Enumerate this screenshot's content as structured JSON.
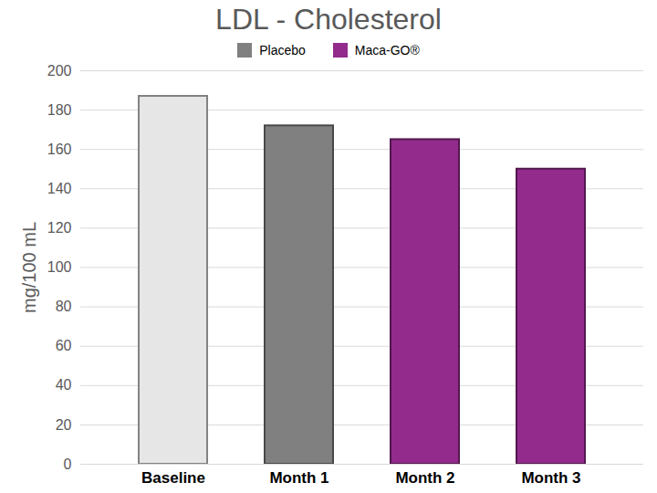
{
  "chart_data": {
    "type": "bar",
    "title": "LDL - Cholesterol",
    "categories": [
      "Baseline",
      "Month 1",
      "Month 2",
      "Month 3"
    ],
    "series": [
      {
        "color": "#e6e6e6",
        "values": [
          187,
          null,
          null,
          null
        ]
      },
      {
        "name": "Placebo",
        "color": "#808080",
        "values": [
          null,
          172,
          null,
          null
        ]
      },
      {
        "name": "Maca-GO®",
        "color": "#922b8c",
        "values": [
          null,
          null,
          165,
          150
        ]
      }
    ],
    "y_label": "mg/100 mL",
    "ylim": [
      0,
      200
    ],
    "yticks": [
      0,
      20,
      40,
      60,
      80,
      100,
      120,
      140,
      160,
      180,
      200
    ],
    "grid": true,
    "legend": "top"
  }
}
